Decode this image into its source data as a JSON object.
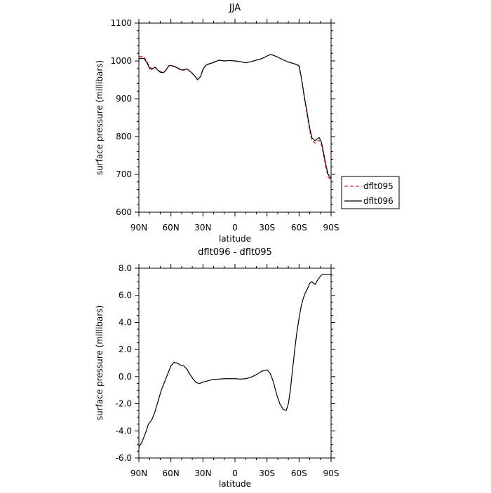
{
  "chart_data": [
    {
      "type": "line",
      "title": "JJA",
      "xlabel": "latitude",
      "ylabel": "surface pressure (millibars)",
      "xlim": [
        90,
        -90
      ],
      "ylim": [
        600,
        1100
      ],
      "xticks": [
        90,
        60,
        30,
        0,
        -30,
        -60,
        -90
      ],
      "xtick_labels": [
        "90N",
        "60N",
        "30N",
        "0",
        "30S",
        "60S",
        "90S"
      ],
      "yticks": [
        600,
        700,
        800,
        900,
        1000,
        1100
      ],
      "ytick_labels": [
        "600",
        "700",
        "800",
        "900",
        "1000",
        "1100"
      ],
      "legend": "outside-right",
      "series": [
        {
          "name": "dflt095",
          "color": "#e31a1c",
          "dash": "dashed",
          "x": [
            90,
            87,
            85,
            82,
            80,
            78,
            75,
            72,
            70,
            67,
            65,
            62,
            60,
            57,
            55,
            52,
            50,
            47,
            45,
            42,
            40,
            37,
            35,
            32,
            30,
            27,
            25,
            20,
            15,
            10,
            5,
            0,
            -5,
            -10,
            -15,
            -20,
            -25,
            -30,
            -33,
            -35,
            -40,
            -45,
            -50,
            -55,
            -58,
            -60,
            -62,
            -65,
            -68,
            -70,
            -72,
            -75,
            -77,
            -79,
            -81,
            -83,
            -85,
            -87,
            -90
          ],
          "y": [
            1011,
            1012,
            1010,
            996,
            984,
            980,
            984,
            976,
            972,
            970,
            974,
            987,
            987,
            985,
            982,
            978,
            975,
            976,
            979,
            972,
            968,
            958,
            950,
            960,
            978,
            990,
            992,
            997,
            1002,
            1000,
            1001,
            1000,
            998,
            995,
            998,
            1002,
            1006,
            1013,
            1017,
            1016,
            1010,
            1003,
            997,
            993,
            990,
            988,
            960,
            900,
            850,
            815,
            790,
            783,
            788,
            790,
            778,
            750,
            720,
            695,
            682
          ]
        },
        {
          "name": "dflt096",
          "color": "#000000",
          "dash": "solid",
          "x": [
            90,
            87,
            85,
            82,
            80,
            78,
            75,
            72,
            70,
            67,
            65,
            62,
            60,
            57,
            55,
            52,
            50,
            47,
            45,
            42,
            40,
            37,
            35,
            32,
            30,
            27,
            25,
            20,
            15,
            10,
            5,
            0,
            -5,
            -10,
            -15,
            -20,
            -25,
            -30,
            -33,
            -35,
            -40,
            -45,
            -50,
            -55,
            -58,
            -60,
            -62,
            -65,
            -68,
            -70,
            -72,
            -75,
            -77,
            -79,
            -81,
            -83,
            -85,
            -87,
            -90
          ],
          "y": [
            1006,
            1007,
            1006,
            993,
            980,
            978,
            983,
            975,
            970,
            969,
            974,
            987,
            988,
            986,
            983,
            979,
            976,
            977,
            979,
            972,
            967,
            958,
            950,
            960,
            978,
            989,
            991,
            996,
            1002,
            1000,
            1001,
            1000,
            998,
            995,
            998,
            1002,
            1006,
            1013,
            1017,
            1016,
            1010,
            1003,
            997,
            993,
            990,
            986,
            958,
            905,
            856,
            822,
            797,
            789,
            794,
            797,
            785,
            757,
            727,
            702,
            688
          ]
        }
      ]
    },
    {
      "type": "line",
      "title": "dflt096 - dflt095",
      "xlabel": "latitude",
      "ylabel": "surface pressure (millibars)",
      "xlim": [
        90,
        -90
      ],
      "ylim": [
        -6,
        8
      ],
      "xticks": [
        90,
        60,
        30,
        0,
        -30,
        -60,
        -90
      ],
      "xtick_labels": [
        "90N",
        "60N",
        "30N",
        "0",
        "30S",
        "60S",
        "90S"
      ],
      "yticks": [
        -6,
        -4,
        -2,
        0,
        2,
        4,
        6,
        8
      ],
      "ytick_labels": [
        "-6.0",
        "-4.0",
        "-2.0",
        "0.0",
        "2.0",
        "4.0",
        "6.0",
        "8.0"
      ],
      "series": [
        {
          "color": "#000000",
          "dash": "solid",
          "x": [
            90,
            87,
            84,
            81,
            78,
            75,
            72,
            69,
            66,
            63,
            60,
            57,
            54,
            51,
            48,
            45,
            42,
            39,
            36,
            33,
            30,
            25,
            20,
            15,
            10,
            5,
            0,
            -5,
            -10,
            -15,
            -20,
            -25,
            -30,
            -33,
            -36,
            -39,
            -42,
            -45,
            -48,
            -50,
            -52,
            -54,
            -56,
            -58,
            -60,
            -62,
            -64,
            -66,
            -68,
            -70,
            -72,
            -75,
            -78,
            -81,
            -84,
            -87,
            -90
          ],
          "y": [
            -5.2,
            -4.8,
            -4.2,
            -3.5,
            -3.2,
            -2.6,
            -1.8,
            -1.0,
            -0.4,
            0.2,
            0.8,
            1.05,
            1.0,
            0.85,
            0.8,
            0.55,
            0.15,
            -0.2,
            -0.45,
            -0.5,
            -0.4,
            -0.3,
            -0.2,
            -0.18,
            -0.15,
            -0.15,
            -0.15,
            -0.18,
            -0.15,
            -0.05,
            0.15,
            0.4,
            0.5,
            0.25,
            -0.4,
            -1.3,
            -2.0,
            -2.4,
            -2.5,
            -2.0,
            -0.9,
            0.6,
            2.0,
            3.3,
            4.3,
            5.2,
            5.8,
            6.2,
            6.5,
            6.9,
            7.0,
            6.8,
            7.2,
            7.5,
            7.55,
            7.55,
            7.5
          ]
        }
      ]
    }
  ]
}
